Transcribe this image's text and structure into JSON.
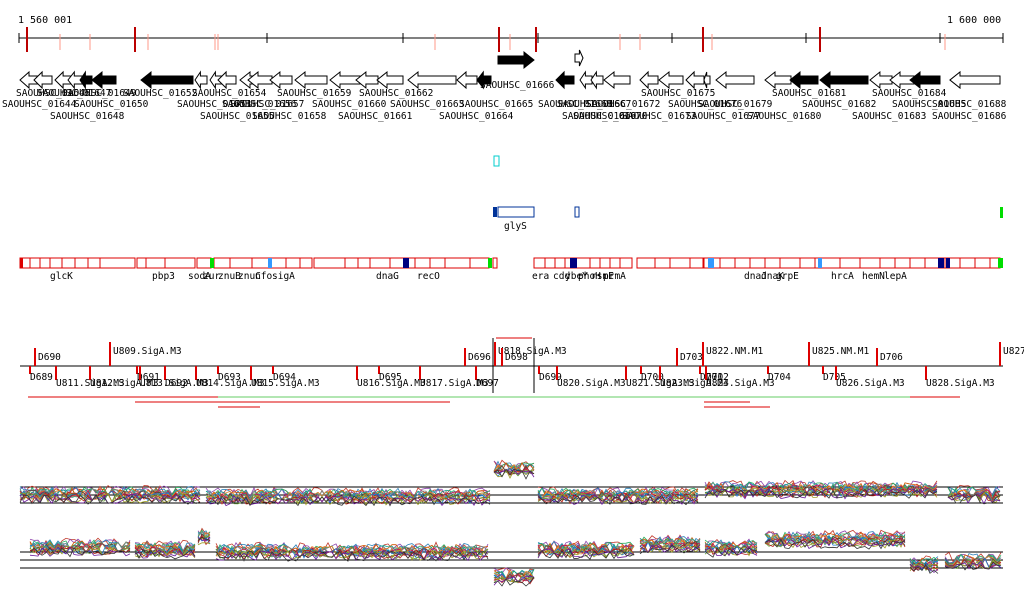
{
  "ruler": {
    "start_label": "1 560 001",
    "end_label": "1 600 000",
    "red_ticks_strong": [
      27,
      135,
      499,
      536,
      703,
      820
    ],
    "red_ticks_light": [
      60,
      90,
      148,
      215,
      218,
      435,
      510,
      620,
      640,
      712,
      945
    ]
  },
  "genes": [
    {
      "id": "SAOUHSC_01644",
      "row": 1,
      "dir": "left",
      "filled": false
    },
    {
      "id": "SAOUHSC_01645",
      "row": 0,
      "dir": "left",
      "filled": false
    },
    {
      "id": "SAOUHSC_01647",
      "row": 0,
      "dir": "left",
      "filled": false
    },
    {
      "id": "SAOUHSC_01648",
      "row": 2,
      "dir": "left",
      "filled": false
    },
    {
      "id": "SAOUHSC_01649",
      "row": 0,
      "dir": "left",
      "filled": true
    },
    {
      "id": "SAOUHSC_01650",
      "row": 1,
      "dir": "left",
      "filled": true
    },
    {
      "id": "SAOUHSC_01652",
      "row": 0,
      "dir": "left",
      "filled": true
    },
    {
      "id": "SAOUHSC_01653",
      "row": 1,
      "dir": "left",
      "filled": false
    },
    {
      "id": "SAOUHSC_01654",
      "row": 0,
      "dir": "left",
      "filled": false
    },
    {
      "id": "SAOUHSC_01655",
      "row": 2,
      "dir": "left",
      "filled": false
    },
    {
      "id": "SAOUHSC_01656",
      "row": 1,
      "dir": "left",
      "filled": false
    },
    {
      "id": "SAOUHSC_01657",
      "row": 1,
      "dir": "left",
      "filled": false
    },
    {
      "id": "SAOUHSC_01658",
      "row": 2,
      "dir": "left",
      "filled": false
    },
    {
      "id": "SAOUHSC_01659",
      "row": 0,
      "dir": "left",
      "filled": false
    },
    {
      "id": "SAOUHSC_01660",
      "row": 1,
      "dir": "left",
      "filled": false
    },
    {
      "id": "SAOUHSC_01661",
      "row": 2,
      "dir": "left",
      "filled": false
    },
    {
      "id": "SAOUHSC_01662",
      "row": 0,
      "dir": "left",
      "filled": false
    },
    {
      "id": "SAOUHSC_01663",
      "row": 1,
      "dir": "left",
      "filled": false
    },
    {
      "id": "SAOUHSC_01664",
      "row": 2,
      "dir": "left",
      "filled": false
    },
    {
      "id": "SAOUHSC_01665",
      "row": 1,
      "dir": "left",
      "filled": true
    },
    {
      "id": "SAOUHSC_01666",
      "row": 0,
      "dir": "right",
      "filled": true
    },
    {
      "id": "SAOUHSC_01667",
      "row": 1,
      "dir": "right",
      "filled": false
    },
    {
      "id": "SAOUHSC_01668",
      "row": 1,
      "dir": "left",
      "filled": true
    },
    {
      "id": "SAOUHSC_01669",
      "row": 2,
      "dir": "left",
      "filled": false
    },
    {
      "id": "SAOUHSC_01670",
      "row": 2,
      "dir": "left",
      "filled": false
    },
    {
      "id": "SAOUHSC_01672",
      "row": 1,
      "dir": "left",
      "filled": false
    },
    {
      "id": "SAOUHSC_01673",
      "row": 2,
      "dir": "left",
      "filled": false
    },
    {
      "id": "SAOUHSC_01675",
      "row": 0,
      "dir": "left",
      "filled": false
    },
    {
      "id": "SAOUHSC_01676",
      "row": 1,
      "dir": "left",
      "filled": false
    },
    {
      "id": "SAOUHSC_01677",
      "row": 2,
      "dir": "left",
      "filled": false
    },
    {
      "id": "SAOUHSC_01679",
      "row": 1,
      "dir": "left",
      "filled": false
    },
    {
      "id": "SAOUHSC_01680",
      "row": 2,
      "dir": "left",
      "filled": false
    },
    {
      "id": "SAOUHSC_01681",
      "row": 0,
      "dir": "left",
      "filled": true
    },
    {
      "id": "SAOUHSC_01682",
      "row": 1,
      "dir": "left",
      "filled": true
    },
    {
      "id": "SAOUHSC_01683",
      "row": 2,
      "dir": "left",
      "filled": false
    },
    {
      "id": "SAOUHSC_01684",
      "row": 0,
      "dir": "left",
      "filled": false
    },
    {
      "id": "SAOUHSC_01685",
      "row": 1,
      "dir": "left",
      "filled": true
    },
    {
      "id": "SAOUHSC_01686",
      "row": 2,
      "dir": "left",
      "filled": false
    },
    {
      "id": "SAOUHSC_01688",
      "row": 1,
      "dir": "left",
      "filled": false
    }
  ],
  "feature_track": {
    "glyS": "glyS"
  },
  "operons": [
    {
      "label": "glcK"
    },
    {
      "label": "pbp3"
    },
    {
      "label": "sodA"
    },
    {
      "label": "zur"
    },
    {
      "label": "znuB"
    },
    {
      "label": "znuC"
    },
    {
      "label": "nfo"
    },
    {
      "label": "sigA"
    },
    {
      "label": "dnaG"
    },
    {
      "label": "recO"
    },
    {
      "label": "era"
    },
    {
      "label": "cdd"
    },
    {
      "label": "ybeY"
    },
    {
      "label": "phoH"
    },
    {
      "label": "rsmE"
    },
    {
      "label": "prmA"
    },
    {
      "label": "dnaJ"
    },
    {
      "label": "dnaK"
    },
    {
      "label": "grpE"
    },
    {
      "label": "hrcA"
    },
    {
      "label": "hemN"
    },
    {
      "label": "lepA"
    }
  ],
  "promoters": [
    {
      "label": "D690"
    },
    {
      "label": "U809.SigA.M3"
    },
    {
      "label": "D696"
    },
    {
      "label": "U818.SigA.M3"
    },
    {
      "label": "D698"
    },
    {
      "label": "D703"
    },
    {
      "label": "U822.NM.M1"
    },
    {
      "label": "U825.NM.M1"
    },
    {
      "label": "D706"
    },
    {
      "label": "U827"
    },
    {
      "label": "D689"
    },
    {
      "label": "U811.SigA.M3"
    },
    {
      "label": "U812.SigA.M3"
    },
    {
      "label": "D691"
    },
    {
      "label": "D692"
    },
    {
      "label": "U813.SigA.M3"
    },
    {
      "label": "D693"
    },
    {
      "label": "U814.SigA.M3"
    },
    {
      "label": "D694"
    },
    {
      "label": "U815.SigA.M3"
    },
    {
      "label": "D695"
    },
    {
      "label": "U816.SigA.M3"
    },
    {
      "label": "U817.SigA.M3"
    },
    {
      "label": "D697"
    },
    {
      "label": "D699"
    },
    {
      "label": "U820.SigA.M3"
    },
    {
      "label": "D700"
    },
    {
      "label": "U821.SigA.M3"
    },
    {
      "label": "U823.SigA.M3"
    },
    {
      "label": "D701"
    },
    {
      "label": "D702"
    },
    {
      "label": "U824.SigA.M3"
    },
    {
      "label": "D704"
    },
    {
      "label": "D705"
    },
    {
      "label": "U826.SigA.M3"
    },
    {
      "label": "U828.SigA.M3"
    }
  ],
  "colors": {
    "operon_border": "#dd0000",
    "operon_blue": "#000080",
    "operon_green": "#00dd00",
    "operon_lightblue": "#3399ff",
    "glyS_blue": "#003399",
    "marker_cyan": "#00cccc",
    "promoter_red": "#dd0000",
    "axis": "#000000"
  }
}
